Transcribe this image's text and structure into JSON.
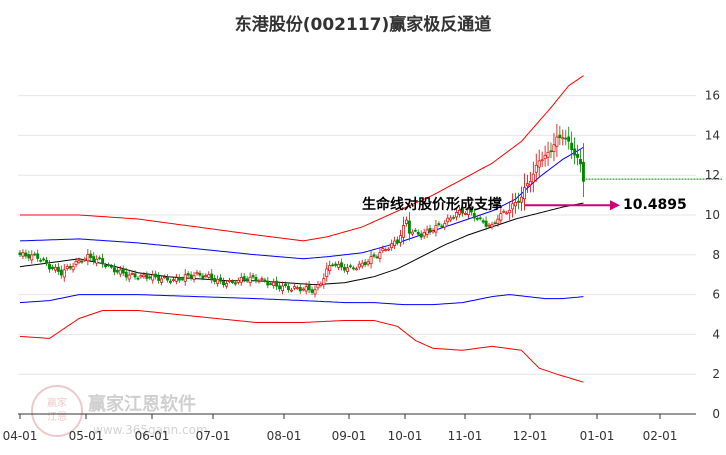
{
  "chart_data": {
    "type": "candlestick",
    "title": "东港股份(002117)赢家极反通道",
    "x_ticks": [
      "04-01",
      "05-01",
      "06-01",
      "07-01",
      "08-01",
      "09-01",
      "10-01",
      "11-01",
      "12-01",
      "01-01",
      "02-01"
    ],
    "y_ticks": [
      "0",
      "2",
      "4",
      "6",
      "8",
      "10",
      "12",
      "14",
      "16"
    ],
    "ylim": [
      0,
      17.5
    ],
    "grid": "horizontal",
    "annotation": {
      "text": "生命线对股价形成支撑",
      "value_label": "10.4895",
      "value": 10.4895
    },
    "colors": {
      "up": "#dd0000",
      "down": "#008800",
      "outer_band": "#ff0000",
      "inner_band": "#0000ff",
      "life_line": "#000000",
      "arrow": "#cc0077",
      "price_line": "#008800",
      "grid": "#e6e6e6"
    },
    "close_anchors": [
      [
        0,
        8.0
      ],
      [
        6,
        7.9
      ],
      [
        10,
        7.4
      ],
      [
        14,
        7.1
      ],
      [
        18,
        7.5
      ],
      [
        23,
        7.9
      ],
      [
        27,
        7.7
      ],
      [
        31,
        7.3
      ],
      [
        36,
        7.0
      ],
      [
        40,
        6.9
      ],
      [
        44,
        6.9
      ],
      [
        48,
        6.8
      ],
      [
        52,
        6.7
      ],
      [
        56,
        6.9
      ],
      [
        60,
        7.0
      ],
      [
        64,
        6.9
      ],
      [
        68,
        6.6
      ],
      [
        72,
        6.6
      ],
      [
        76,
        6.8
      ],
      [
        80,
        6.8
      ],
      [
        84,
        6.6
      ],
      [
        88,
        6.4
      ],
      [
        92,
        6.3
      ],
      [
        96,
        6.3
      ],
      [
        100,
        6.2
      ],
      [
        102,
        6.6
      ],
      [
        104,
        7.2
      ],
      [
        106,
        7.6
      ],
      [
        108,
        7.4
      ],
      [
        112,
        7.3
      ],
      [
        116,
        7.5
      ],
      [
        120,
        7.9
      ],
      [
        124,
        8.3
      ],
      [
        128,
        8.7
      ],
      [
        131,
        9.7
      ],
      [
        132,
        9.2
      ],
      [
        136,
        9.0
      ],
      [
        140,
        9.3
      ],
      [
        144,
        9.6
      ],
      [
        148,
        10.1
      ],
      [
        152,
        10.2
      ],
      [
        156,
        9.7
      ],
      [
        160,
        9.4
      ],
      [
        162,
        9.9
      ],
      [
        166,
        10.3
      ],
      [
        170,
        10.9
      ],
      [
        172,
        11.6
      ],
      [
        174,
        12.0
      ],
      [
        176,
        12.8
      ],
      [
        178,
        12.9
      ],
      [
        180,
        13.3
      ],
      [
        182,
        13.8
      ],
      [
        184,
        14.0
      ],
      [
        186,
        13.6
      ],
      [
        188,
        13.1
      ],
      [
        190,
        12.5
      ],
      [
        191,
        11.8
      ]
    ],
    "ref_line_value": 11.8,
    "outer_upper_anchors": [
      [
        0,
        10.0
      ],
      [
        20,
        10.0
      ],
      [
        40,
        9.8
      ],
      [
        60,
        9.4
      ],
      [
        80,
        9.0
      ],
      [
        96,
        8.7
      ],
      [
        104,
        8.9
      ],
      [
        116,
        9.4
      ],
      [
        128,
        10.2
      ],
      [
        140,
        11.0
      ],
      [
        150,
        11.8
      ],
      [
        160,
        12.6
      ],
      [
        170,
        13.7
      ],
      [
        180,
        15.4
      ],
      [
        186,
        16.5
      ],
      [
        191,
        17.0
      ]
    ],
    "outer_lower_anchors": [
      [
        0,
        3.9
      ],
      [
        10,
        3.8
      ],
      [
        20,
        4.8
      ],
      [
        28,
        5.2
      ],
      [
        40,
        5.2
      ],
      [
        60,
        4.9
      ],
      [
        80,
        4.6
      ],
      [
        96,
        4.6
      ],
      [
        110,
        4.7
      ],
      [
        120,
        4.7
      ],
      [
        128,
        4.4
      ],
      [
        134,
        3.7
      ],
      [
        140,
        3.3
      ],
      [
        150,
        3.2
      ],
      [
        160,
        3.4
      ],
      [
        170,
        3.2
      ],
      [
        176,
        2.3
      ],
      [
        182,
        2.0
      ],
      [
        191,
        1.6
      ]
    ],
    "inner_upper_anchors": [
      [
        0,
        8.7
      ],
      [
        20,
        8.8
      ],
      [
        40,
        8.6
      ],
      [
        60,
        8.3
      ],
      [
        80,
        8.0
      ],
      [
        96,
        7.8
      ],
      [
        104,
        7.9
      ],
      [
        116,
        8.1
      ],
      [
        128,
        8.6
      ],
      [
        140,
        9.2
      ],
      [
        150,
        9.7
      ],
      [
        160,
        10.2
      ],
      [
        168,
        10.8
      ],
      [
        176,
        11.9
      ],
      [
        184,
        12.8
      ],
      [
        191,
        13.4
      ]
    ],
    "inner_lower_anchors": [
      [
        0,
        5.6
      ],
      [
        10,
        5.7
      ],
      [
        20,
        6.0
      ],
      [
        40,
        6.0
      ],
      [
        60,
        5.9
      ],
      [
        80,
        5.8
      ],
      [
        96,
        5.7
      ],
      [
        110,
        5.6
      ],
      [
        120,
        5.6
      ],
      [
        130,
        5.5
      ],
      [
        140,
        5.5
      ],
      [
        150,
        5.6
      ],
      [
        160,
        5.9
      ],
      [
        166,
        6.0
      ],
      [
        172,
        5.9
      ],
      [
        178,
        5.8
      ],
      [
        184,
        5.8
      ],
      [
        191,
        5.9
      ]
    ],
    "life_line_anchors": [
      [
        0,
        7.4
      ],
      [
        10,
        7.6
      ],
      [
        20,
        7.8
      ],
      [
        30,
        7.5
      ],
      [
        40,
        7.1
      ],
      [
        50,
        6.9
      ],
      [
        60,
        6.8
      ],
      [
        70,
        6.7
      ],
      [
        80,
        6.7
      ],
      [
        90,
        6.6
      ],
      [
        100,
        6.5
      ],
      [
        110,
        6.6
      ],
      [
        120,
        6.9
      ],
      [
        128,
        7.3
      ],
      [
        136,
        7.9
      ],
      [
        144,
        8.5
      ],
      [
        152,
        9.0
      ],
      [
        160,
        9.4
      ],
      [
        168,
        9.8
      ],
      [
        176,
        10.1
      ],
      [
        184,
        10.4
      ],
      [
        191,
        10.6
      ]
    ]
  },
  "watermark": {
    "text": "赢家江恩软件",
    "url": "www.365gann.com",
    "badge_line1": "赢家",
    "badge_line2": "江恩"
  }
}
